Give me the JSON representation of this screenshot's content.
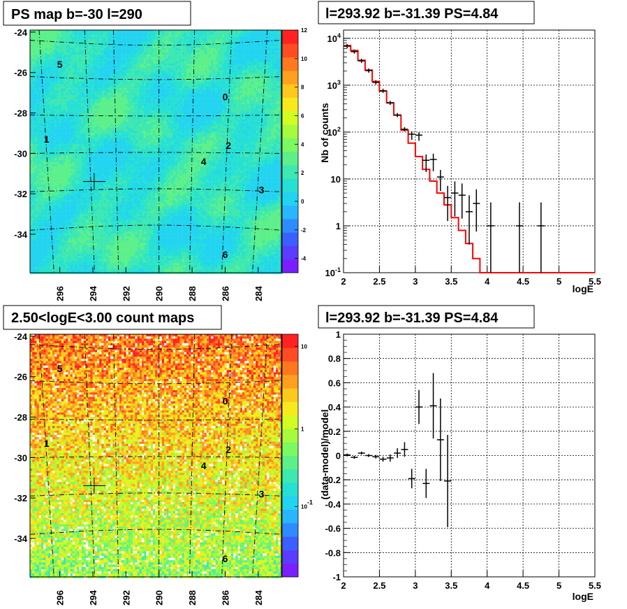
{
  "chart_data": [
    {
      "type": "heatmap",
      "title": "PS map b=-30 l=290",
      "x_ticks": [
        "296",
        "294",
        "292",
        "290",
        "288",
        "286",
        "284"
      ],
      "y_ticks": [
        "-24",
        "-26",
        "-28",
        "-30",
        "-32",
        "-34"
      ],
      "xlim": [
        297.8,
        282.6
      ],
      "ylim": [
        -35.9,
        -23.9
      ],
      "color_scale": {
        "min": -5,
        "max": 12,
        "ticks": [
          "12",
          "10",
          "8",
          "6",
          "4",
          "2",
          "0",
          "-2",
          "-4"
        ]
      },
      "sources": [
        {
          "label": "0",
          "l": 286.0,
          "b": -27.2
        },
        {
          "label": "1",
          "l": 296.8,
          "b": -29.3
        },
        {
          "label": "2",
          "l": 285.8,
          "b": -29.6
        },
        {
          "label": "3",
          "l": 283.8,
          "b": -31.8
        },
        {
          "label": "4",
          "l": 287.3,
          "b": -30.4
        },
        {
          "label": "5",
          "l": 296.0,
          "b": -25.6
        },
        {
          "label": "6",
          "l": 286.0,
          "b": -35.0
        }
      ],
      "marker": {
        "l": 293.92,
        "b": -31.39
      }
    },
    {
      "type": "line",
      "title": "l=293.92 b=-31.39 PS=4.84",
      "xlabel": "logE",
      "ylabel": "Nb of counts",
      "xlim": [
        2,
        5.5
      ],
      "ylim": [
        0.1,
        15000
      ],
      "yscale": "log",
      "x_ticks": [
        "2",
        "2.5",
        "3",
        "3.5",
        "4",
        "4.5",
        "5",
        "5.5"
      ],
      "y_ticks": [
        "10^4",
        "10^3",
        "10^2",
        "10",
        "1",
        "10^-1"
      ],
      "model_series": {
        "name": "model",
        "edges": [
          2.0,
          2.1,
          2.2,
          2.3,
          2.4,
          2.5,
          2.6,
          2.7,
          2.8,
          2.9,
          3.0,
          3.1,
          3.2,
          3.3,
          3.4,
          3.5,
          3.6,
          3.7,
          3.8,
          3.9,
          4.0,
          4.1,
          4.2,
          4.3,
          4.4,
          4.5,
          4.6,
          4.7,
          4.8,
          4.9,
          5.0,
          5.1,
          5.2,
          5.3,
          5.4,
          5.5
        ],
        "values": [
          7000,
          5500,
          3400,
          2100,
          1200,
          750,
          420,
          230,
          110,
          58,
          30,
          16,
          9,
          5,
          2.8,
          1.5,
          0.8,
          0.42,
          0.2,
          0.1,
          0.1,
          0.1,
          0.1,
          0.1,
          0.1,
          0.1,
          0.1,
          0.1,
          0.1,
          0.1,
          0.1,
          0.1,
          0.1,
          0.1,
          0.1
        ]
      },
      "data_points": [
        {
          "x": 2.05,
          "y": 6800
        },
        {
          "x": 2.15,
          "y": 5200
        },
        {
          "x": 2.25,
          "y": 3300
        },
        {
          "x": 2.35,
          "y": 2050
        },
        {
          "x": 2.45,
          "y": 1150
        },
        {
          "x": 2.55,
          "y": 760
        },
        {
          "x": 2.65,
          "y": 420
        },
        {
          "x": 2.75,
          "y": 230
        },
        {
          "x": 2.85,
          "y": 115
        },
        {
          "x": 2.95,
          "y": 90,
          "err": 0.12
        },
        {
          "x": 3.05,
          "y": 86,
          "err": 0.12
        },
        {
          "x": 3.15,
          "y": 25,
          "err": 0.25
        },
        {
          "x": 3.25,
          "y": 26,
          "err": 0.25
        },
        {
          "x": 3.35,
          "y": 11,
          "err": 0.3
        },
        {
          "x": 3.45,
          "y": 4,
          "err": 0.5
        },
        {
          "x": 3.55,
          "y": 5,
          "err": 0.5
        },
        {
          "x": 3.65,
          "y": 4.5,
          "err": 0.5
        },
        {
          "x": 3.75,
          "y": 2,
          "err": 0.7
        },
        {
          "x": 3.85,
          "y": 3,
          "err": 0.6
        },
        {
          "x": 4.05,
          "y": 1,
          "err": 1.0
        },
        {
          "x": 4.45,
          "y": 1,
          "err": 1.0
        },
        {
          "x": 4.75,
          "y": 1,
          "err": 1.0
        }
      ]
    },
    {
      "type": "heatmap",
      "title": "2.50<logE<3.00 count maps",
      "x_ticks": [
        "296",
        "294",
        "292",
        "290",
        "288",
        "286",
        "284"
      ],
      "y_ticks": [
        "-24",
        "-26",
        "-28",
        "-30",
        "-32",
        "-34"
      ],
      "xlim": [
        297.8,
        282.6
      ],
      "ylim": [
        -35.9,
        -23.9
      ],
      "color_scale": {
        "scale": "log",
        "ticks": [
          "10",
          "1",
          "10^-1"
        ]
      },
      "sources": [
        {
          "label": "0",
          "l": 286.0,
          "b": -27.2
        },
        {
          "label": "1",
          "l": 296.8,
          "b": -29.3
        },
        {
          "label": "2",
          "l": 285.8,
          "b": -29.6
        },
        {
          "label": "3",
          "l": 283.8,
          "b": -31.8
        },
        {
          "label": "4",
          "l": 287.3,
          "b": -30.4
        },
        {
          "label": "5",
          "l": 296.0,
          "b": -25.6
        },
        {
          "label": "6",
          "l": 286.0,
          "b": -35.0
        }
      ],
      "marker": {
        "l": 293.92,
        "b": -31.39
      }
    },
    {
      "type": "scatter",
      "title": "l=293.92 b=-31.39 PS=4.84",
      "xlabel": "logE",
      "ylabel": "(data-model)/model",
      "xlim": [
        2,
        5.5
      ],
      "ylim": [
        -1,
        1
      ],
      "x_ticks": [
        "2",
        "2.5",
        "3",
        "3.5",
        "4",
        "4.5",
        "5",
        "5.5"
      ],
      "y_ticks": [
        "1",
        "0.8",
        "0.6",
        "0.4",
        "0.2",
        "0",
        "-0.2",
        "-0.4",
        "-0.6",
        "-0.8",
        "-1"
      ],
      "points": [
        {
          "x": 2.05,
          "y": 0.005,
          "err": 0.005
        },
        {
          "x": 2.15,
          "y": -0.015,
          "err": 0.008
        },
        {
          "x": 2.25,
          "y": 0.02,
          "err": 0.01
        },
        {
          "x": 2.35,
          "y": 0.0,
          "err": 0.012
        },
        {
          "x": 2.45,
          "y": -0.01,
          "err": 0.015
        },
        {
          "x": 2.55,
          "y": -0.03,
          "err": 0.02
        },
        {
          "x": 2.65,
          "y": -0.02,
          "err": 0.03
        },
        {
          "x": 2.75,
          "y": 0.02,
          "err": 0.04
        },
        {
          "x": 2.85,
          "y": 0.05,
          "err": 0.06
        },
        {
          "x": 2.95,
          "y": -0.19,
          "err": 0.08
        },
        {
          "x": 3.05,
          "y": 0.4,
          "err": 0.14
        },
        {
          "x": 3.15,
          "y": -0.23,
          "err": 0.12
        },
        {
          "x": 3.25,
          "y": 0.41,
          "err": 0.27
        },
        {
          "x": 3.35,
          "y": 0.13,
          "err": 0.34
        },
        {
          "x": 3.45,
          "y": -0.21,
          "err": 0.38
        }
      ]
    }
  ]
}
